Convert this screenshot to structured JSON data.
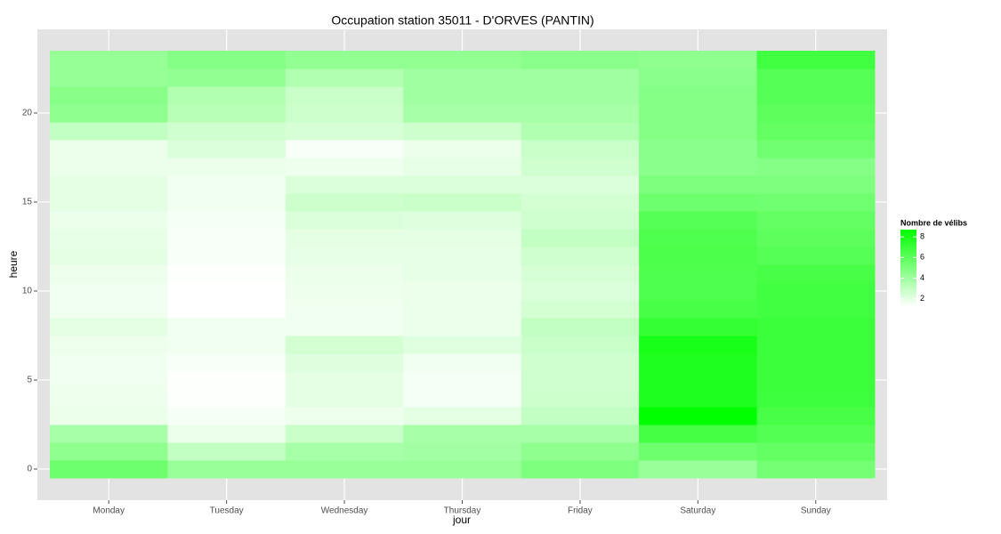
{
  "chart_data": {
    "type": "heatmap",
    "title": "Occupation station 35011 - D'ORVES (PANTIN)",
    "xlabel": "jour",
    "ylabel": "heure",
    "categories": [
      "Monday",
      "Tuesday",
      "Wednesday",
      "Thursday",
      "Friday",
      "Saturday",
      "Sunday"
    ],
    "y": [
      0,
      1,
      2,
      3,
      4,
      5,
      6,
      7,
      8,
      9,
      10,
      11,
      12,
      13,
      14,
      15,
      16,
      17,
      18,
      19,
      20,
      21,
      22,
      23
    ],
    "values": [
      [
        5.5,
        4.5,
        3.8,
        1.8,
        1.7,
        1.6,
        1.6,
        1.7,
        2,
        1.6,
        1.6,
        1.7,
        2,
        1.9,
        1.8,
        2,
        2,
        1.8,
        1.8,
        3,
        4.5,
        4.7,
        4.3,
        4.3
      ],
      [
        4.2,
        3,
        1.8,
        1.5,
        1.3,
        1.3,
        1.4,
        1.6,
        1.6,
        1.2,
        1.2,
        1.3,
        1.4,
        1.4,
        1.5,
        1.6,
        1.6,
        1.8,
        2.3,
        2.6,
        3.3,
        3.5,
        4.4,
        4.8
      ],
      [
        4.2,
        3.8,
        2.8,
        1.7,
        2,
        2,
        2.2,
        2.5,
        1.6,
        1.6,
        1.7,
        1.8,
        1.9,
        2,
        2.3,
        2.7,
        2.3,
        1.7,
        1.4,
        2.4,
        2.7,
        2.8,
        3.5,
        4.4
      ],
      [
        4.2,
        3.9,
        3.8,
        2,
        1.5,
        1.5,
        1.6,
        2.1,
        1.8,
        1.8,
        1.8,
        1.9,
        1.9,
        2,
        2.2,
        2.8,
        2.3,
        1.9,
        1.8,
        2.7,
        3.8,
        4,
        4,
        4.4
      ],
      [
        5,
        4.5,
        3.8,
        3,
        2.7,
        2.6,
        2.6,
        2.8,
        3,
        2.5,
        2.3,
        2.4,
        2.6,
        3,
        2.6,
        2.5,
        2.3,
        2.6,
        2.8,
        3.5,
        3.8,
        4,
        4,
        4.6
      ],
      [
        4.2,
        5.5,
        6.7,
        8.7,
        7.8,
        7.8,
        7.8,
        8,
        7.2,
        6.6,
        6.4,
        6.4,
        6.5,
        6.4,
        6.2,
        5.5,
        5,
        4.6,
        4.6,
        4.8,
        4.8,
        4.8,
        4.6,
        4.5
      ],
      [
        5.3,
        5.8,
        6.3,
        6.6,
        6.9,
        7,
        7,
        7,
        7,
        6.8,
        6.8,
        6.6,
        6.2,
        6,
        5.8,
        5.4,
        5,
        4.8,
        5.4,
        5.8,
        6,
        6.2,
        6.2,
        6.8
      ]
    ],
    "ylim": [
      -1.75,
      24.7
    ],
    "yticks": [
      0,
      5,
      10,
      15,
      20
    ],
    "grid": true,
    "colorbar": {
      "title": "Nombre de vélibs",
      "lim": [
        1.2,
        8.7
      ],
      "ticks": [
        2,
        4,
        6,
        8
      ],
      "low": "#ffffff",
      "high": "#00ff00"
    }
  }
}
